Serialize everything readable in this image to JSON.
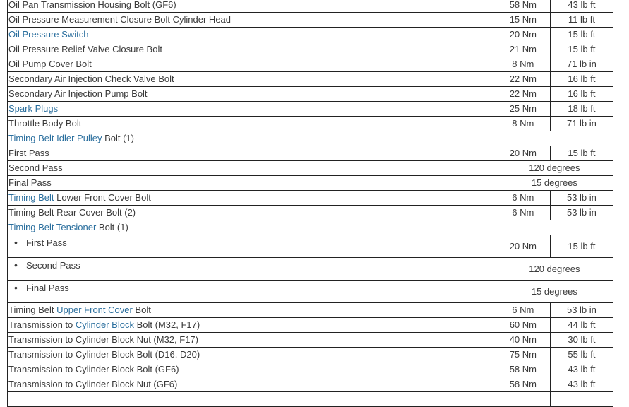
{
  "colors": {
    "link": "#2b6f9e",
    "text": "#3a3a3a",
    "border": "#222222"
  },
  "rows": [
    {
      "desc": [
        {
          "t": "Oil Pan Transmission Housing Bolt (GF6)"
        }
      ],
      "metric": "58 Nm",
      "english": "43 lb ft"
    },
    {
      "desc": [
        {
          "t": "Oil Pressure Measurement Closure Bolt Cylinder Head"
        }
      ],
      "metric": "15 Nm",
      "english": "11 lb ft"
    },
    {
      "desc": [
        {
          "t": "Oil Pressure Switch",
          "link": true
        }
      ],
      "metric": "20 Nm",
      "english": "15 lb ft"
    },
    {
      "desc": [
        {
          "t": "Oil Pressure Relief Valve Closure Bolt"
        }
      ],
      "metric": "21 Nm",
      "english": "15 lb ft"
    },
    {
      "desc": [
        {
          "t": "Oil Pump Cover Bolt"
        }
      ],
      "metric": "8 Nm",
      "english": "71 lb in"
    },
    {
      "desc": [
        {
          "t": "Secondary Air Injection Check Valve Bolt"
        }
      ],
      "metric": "22 Nm",
      "english": "16 lb ft"
    },
    {
      "desc": [
        {
          "t": "Secondary Air Injection Pump Bolt"
        }
      ],
      "metric": "22 Nm",
      "english": "16 lb ft"
    },
    {
      "desc": [
        {
          "t": "Spark Plugs",
          "link": true
        }
      ],
      "metric": "25 Nm",
      "english": "18 lb ft"
    },
    {
      "desc": [
        {
          "t": "Throttle Body Bolt"
        }
      ],
      "metric": "8 Nm",
      "english": "71 lb in"
    },
    {
      "desc": [
        {
          "t": "Timing Belt Idler Pulley",
          "link": true
        },
        {
          "t": " Bolt (1)"
        }
      ],
      "span": ""
    },
    {
      "desc": [
        {
          "t": "First Pass"
        }
      ],
      "metric": "20 Nm",
      "english": "15 lb ft"
    },
    {
      "desc": [
        {
          "t": "Second Pass"
        }
      ],
      "span": "120 degrees"
    },
    {
      "desc": [
        {
          "t": "Final Pass"
        }
      ],
      "span": "15 degrees"
    },
    {
      "desc": [
        {
          "t": "Timing Belt",
          "link": true
        },
        {
          "t": " Lower Front Cover Bolt"
        }
      ],
      "metric": "6 Nm",
      "english": "53 lb in"
    },
    {
      "desc": [
        {
          "t": "Timing Belt Rear Cover Bolt (2)"
        }
      ],
      "metric": "6 Nm",
      "english": "53 lb in"
    },
    {
      "desc": [
        {
          "t": "Timing Belt Tensioner",
          "link": true
        },
        {
          "t": " Bolt (1)"
        }
      ],
      "full": true
    },
    {
      "desc": [
        {
          "t": "First Pass"
        }
      ],
      "bullet": true,
      "metric": "20 Nm",
      "english": "15 lb ft"
    },
    {
      "desc": [
        {
          "t": "Second Pass"
        }
      ],
      "bullet": true,
      "span": "120 degrees"
    },
    {
      "desc": [
        {
          "t": "Final Pass"
        }
      ],
      "bullet": true,
      "span": "15 degrees"
    },
    {
      "desc": [
        {
          "t": "Timing Belt "
        },
        {
          "t": "Upper Front Cover",
          "link": true
        },
        {
          "t": " Bolt"
        }
      ],
      "metric": "6 Nm",
      "english": "53 lb in"
    },
    {
      "desc": [
        {
          "t": "Transmission to "
        },
        {
          "t": "Cylinder Block",
          "link": true
        },
        {
          "t": " Bolt (M32, F17)"
        }
      ],
      "metric": "60 Nm",
      "english": "44 lb ft"
    },
    {
      "desc": [
        {
          "t": "Transmission to Cylinder Block Nut (M32, F17)"
        }
      ],
      "metric": "40 Nm",
      "english": "30 lb ft"
    },
    {
      "desc": [
        {
          "t": "Transmission to Cylinder Block Bolt (D16, D20)"
        }
      ],
      "metric": "75 Nm",
      "english": "55 lb ft"
    },
    {
      "desc": [
        {
          "t": "Transmission to Cylinder Block Bolt (GF6)"
        }
      ],
      "metric": "58 Nm",
      "english": "43 lb ft"
    },
    {
      "desc": [
        {
          "t": "Transmission to Cylinder Block Nut (GF6)"
        }
      ],
      "metric": "58 Nm",
      "english": "43 lb ft"
    },
    {
      "desc": [
        {
          "t": ""
        }
      ],
      "metric": "",
      "english": ""
    }
  ]
}
